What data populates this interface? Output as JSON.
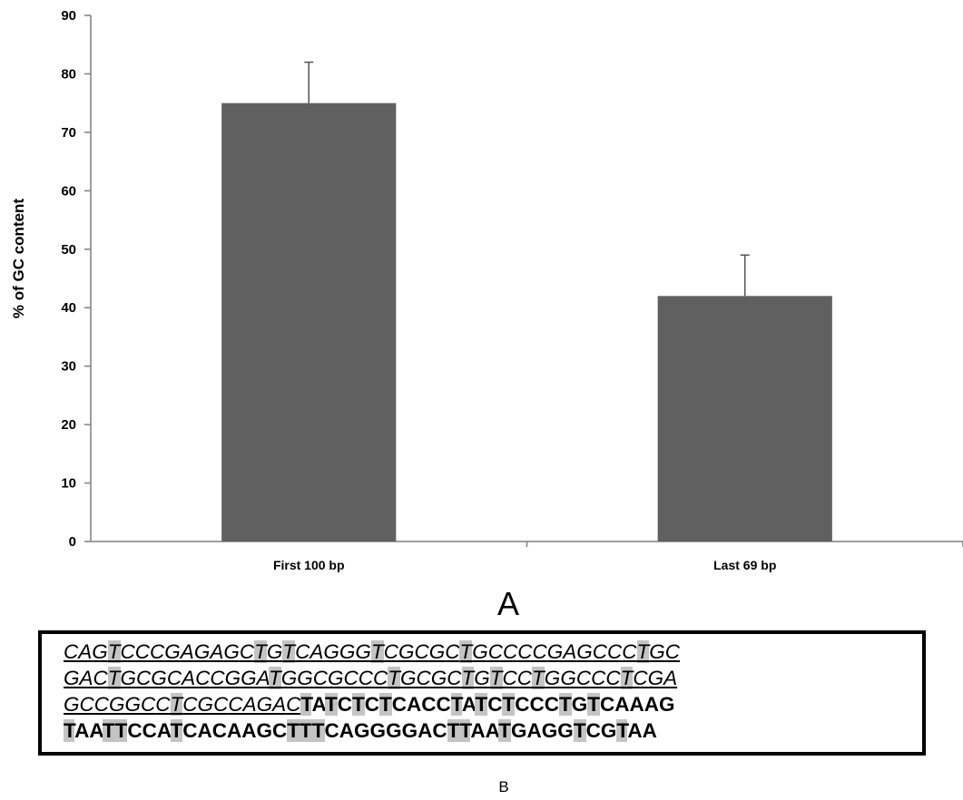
{
  "chart_data": {
    "type": "bar",
    "categories": [
      "First 100 bp",
      "Last 69 bp"
    ],
    "values": [
      75,
      42
    ],
    "error_plus": [
      7,
      7
    ],
    "ylabel": "% of GC content",
    "xlabel": "",
    "ylim": [
      0,
      90
    ],
    "yticks": [
      0,
      10,
      20,
      30,
      40,
      50,
      60,
      70,
      80,
      90
    ],
    "grid": false,
    "bar_color": "#606060"
  },
  "panel_a_label": "A",
  "panel_b_label": "B",
  "sequence": {
    "lines": [
      "CAGTCCCGAGAGCTGTCAGGGTCGCGCTGCCCCGAGCCCTGC",
      "GACTGCGCACCGGATGGCGCCCTGCGCTGTCCTGGCCCTCGA",
      "GCCGGCCTCGCCAGACTATCTCTCACCTATCTCCCTGTCAAAG",
      "TAATTCCATCACAAGCTTTCAGGGGACTTAATGAGGTCGTAA"
    ],
    "italic_underlined_prefix_length": [
      42,
      42,
      16,
      0
    ],
    "highlight_color": "#c4c4c4"
  }
}
